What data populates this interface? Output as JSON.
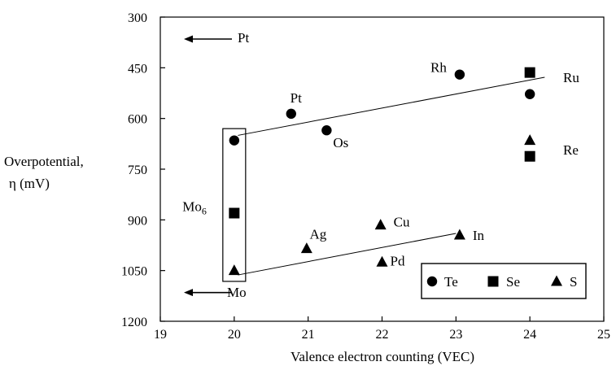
{
  "chart_data": {
    "type": "scatter",
    "title": "",
    "xlabel": "Valence electron counting (VEC)",
    "ylabel_line1": "Overpotential,",
    "ylabel_line2": "η (mV)",
    "xlim": [
      19,
      25
    ],
    "ylim": [
      300,
      1200
    ],
    "y_inverted": true,
    "xticks": [
      19,
      20,
      21,
      22,
      23,
      24,
      25
    ],
    "yticks": [
      300,
      450,
      600,
      750,
      900,
      1050,
      1200
    ],
    "grid": false,
    "legend_position": "bottom-right",
    "series": [
      {
        "name": "Te",
        "marker": "circle",
        "points": [
          {
            "x": 20.0,
            "y": 665,
            "label": ""
          },
          {
            "x": 20.77,
            "y": 586,
            "label": "Pt"
          },
          {
            "x": 21.25,
            "y": 635,
            "label": "Os"
          },
          {
            "x": 23.05,
            "y": 470,
            "label": "Rh"
          },
          {
            "x": 24.0,
            "y": 528,
            "label": ""
          }
        ]
      },
      {
        "name": "Se",
        "marker": "square",
        "points": [
          {
            "x": 20.0,
            "y": 880,
            "label": ""
          },
          {
            "x": 24.0,
            "y": 464,
            "label": ""
          },
          {
            "x": 24.0,
            "y": 712,
            "label": ""
          }
        ]
      },
      {
        "name": "S",
        "marker": "triangle",
        "points": [
          {
            "x": 20.0,
            "y": 1050,
            "label": ""
          },
          {
            "x": 20.98,
            "y": 985,
            "label": "Ag"
          },
          {
            "x": 21.98,
            "y": 915,
            "label": "Cu"
          },
          {
            "x": 22.0,
            "y": 1025,
            "label": "Pd"
          },
          {
            "x": 23.05,
            "y": 945,
            "label": "In"
          },
          {
            "x": 24.0,
            "y": 665,
            "label": ""
          }
        ]
      }
    ],
    "fit_lines": [
      {
        "x1": 20.05,
        "y1": 650,
        "x2": 24.2,
        "y2": 478
      },
      {
        "x1": 20.05,
        "y1": 1063,
        "x2": 23.0,
        "y2": 940
      }
    ],
    "annotations": [
      {
        "text": "Ru",
        "x": 24.45,
        "y": 478
      },
      {
        "text": "Re",
        "x": 24.45,
        "y": 692
      },
      {
        "text": "Pt",
        "x": 19.0,
        "y": 370
      },
      {
        "text": "Mo",
        "x": 19.89,
        "y": 1120
      },
      {
        "text": "Mo",
        "sub": "6",
        "x": 19.3,
        "y": 860
      }
    ],
    "arrows": [
      {
        "label": "Pt",
        "direction": "left",
        "y": 365
      },
      {
        "label": "Mo",
        "direction": "left",
        "y": 1115
      }
    ],
    "bracket": {
      "x": 20.0,
      "y_top": 630,
      "y_bottom": 1082
    },
    "legend": [
      {
        "label": "Te",
        "marker": "circle"
      },
      {
        "label": "Se",
        "marker": "square"
      },
      {
        "label": "S",
        "marker": "triangle"
      }
    ]
  }
}
